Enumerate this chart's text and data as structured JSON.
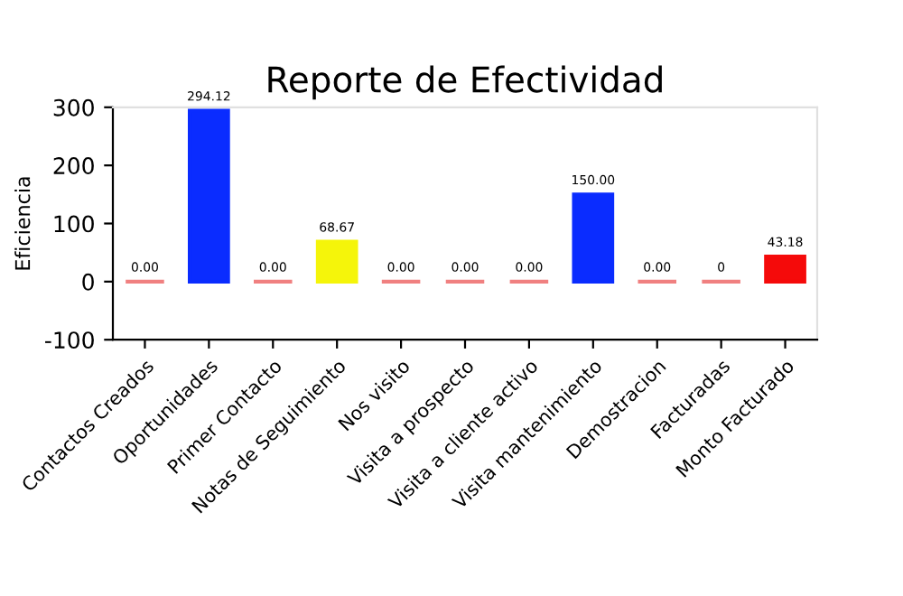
{
  "chart_data": {
    "type": "bar",
    "title": "Reporte de Efectividad",
    "ylabel": "Eficiencia",
    "categories": [
      "Contactos Creados",
      "Oportunidades",
      "Primer Contacto",
      "Notas de Seguimiento",
      "Nos visito",
      "Visita a prospecto",
      "Visita a cliente activo",
      "Visita mantenimiento",
      "Demostracion",
      "Facturadas",
      "Monto Facturado"
    ],
    "values": [
      0,
      294.12,
      0,
      68.67,
      0,
      0,
      0,
      150,
      0,
      0,
      43.18
    ],
    "value_labels": [
      "0.00",
      "294.12",
      "0.00",
      "68.67",
      "0.00",
      "0.00",
      "0.00",
      "150.00",
      "0.00",
      "0",
      "43.18"
    ],
    "colors": [
      "#f08080",
      "#0a2cff",
      "#f08080",
      "#f5f50a",
      "#f08080",
      "#f08080",
      "#f08080",
      "#0a2cff",
      "#f08080",
      "#f08080",
      "#f50a0a"
    ],
    "ylim": [
      -100,
      300
    ],
    "yticks": [
      -100,
      0,
      100,
      200,
      300
    ],
    "grid": false
  }
}
